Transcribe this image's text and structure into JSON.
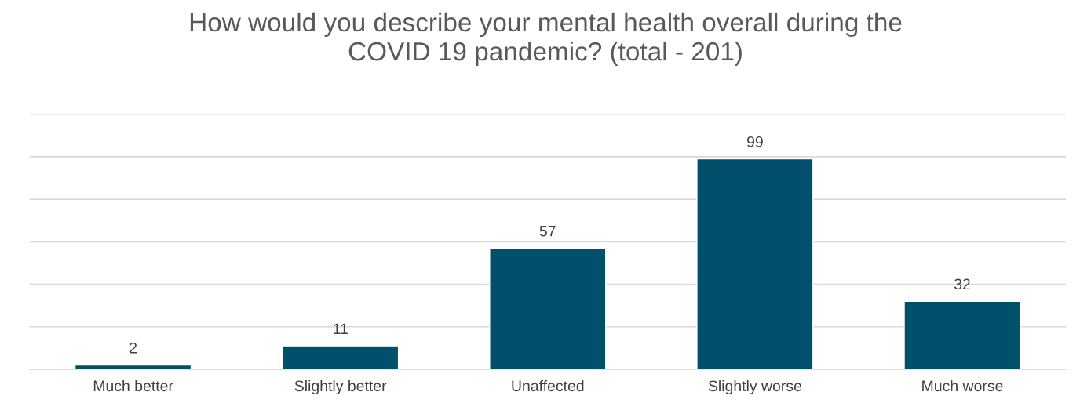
{
  "chart_data": {
    "type": "bar",
    "title": "How would you describe your mental health overall during the\nCOVID 19 pandemic? (total - 201)",
    "categories": [
      "Much better",
      "Slightly better",
      "Unaffected",
      "Slightly worse",
      "Much worse"
    ],
    "values": [
      2,
      11,
      57,
      99,
      32
    ],
    "color": "#00506b",
    "ylim": [
      0,
      120
    ],
    "yticks": [
      {
        "value": 0,
        "label": null
      },
      {
        "value": 20,
        "label": null
      },
      {
        "value": 40,
        "label": null
      },
      {
        "value": 60,
        "label": null
      },
      {
        "value": 80,
        "label": null
      },
      {
        "value": 100,
        "label": null
      },
      {
        "value": 120,
        "label": null
      }
    ],
    "grid": "y",
    "tick_labels": "x",
    "data_labels": true
  }
}
